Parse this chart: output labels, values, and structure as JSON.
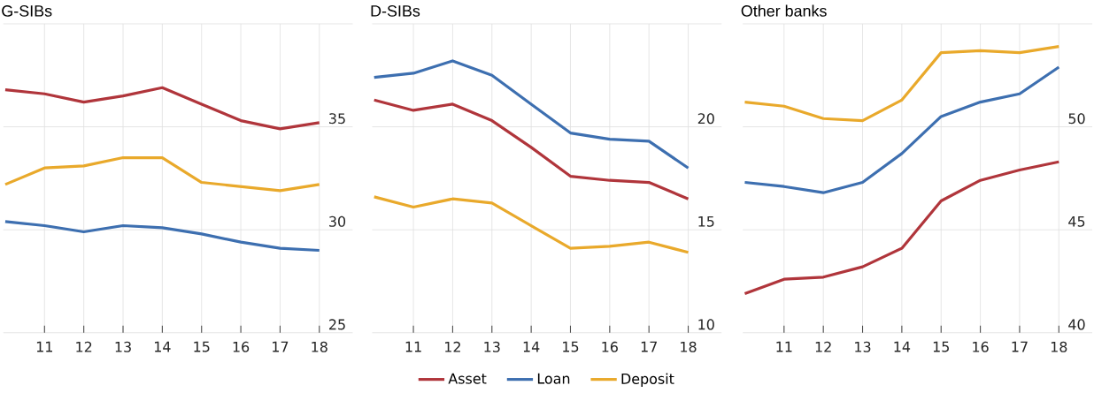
{
  "chart_data": [
    {
      "type": "line",
      "title": "G-SIBs",
      "x": [
        10,
        11,
        12,
        13,
        14,
        15,
        16,
        17,
        18
      ],
      "xlim": [
        9.95,
        18.85
      ],
      "xticks": [
        11,
        12,
        13,
        14,
        15,
        16,
        17,
        18
      ],
      "ylim": [
        25,
        40
      ],
      "yticks": [
        25,
        30,
        35,
        {
          "value": 40,
          "label": null
        }
      ],
      "grid": true,
      "legend": false,
      "series": [
        {
          "color": "#b0353b",
          "values": [
            36.8,
            36.6,
            36.2,
            36.5,
            36.9,
            36.1,
            35.3,
            34.9,
            35.2
          ]
        },
        {
          "color": "#3d6fb0",
          "values": [
            30.4,
            30.2,
            29.9,
            30.2,
            30.1,
            29.8,
            29.4,
            29.1,
            29.0
          ]
        },
        {
          "color": "#e9a92b",
          "values": [
            32.2,
            33.0,
            33.1,
            33.5,
            33.5,
            32.3,
            32.1,
            31.9,
            32.2
          ]
        }
      ]
    },
    {
      "type": "line",
      "title": "D-SIBs",
      "x": [
        10,
        11,
        12,
        13,
        14,
        15,
        16,
        17,
        18
      ],
      "xlim": [
        9.95,
        18.85
      ],
      "xticks": [
        11,
        12,
        13,
        14,
        15,
        16,
        17,
        18
      ],
      "ylim": [
        10,
        25
      ],
      "yticks": [
        10,
        15,
        20,
        {
          "value": 25,
          "label": null
        }
      ],
      "grid": true,
      "legend": "bottom",
      "series": [
        {
          "name": "Asset",
          "color": "#b0353b",
          "values": [
            21.3,
            20.8,
            21.1,
            20.3,
            19.0,
            17.6,
            17.4,
            17.3,
            16.5
          ]
        },
        {
          "name": "Loan",
          "color": "#3d6fb0",
          "values": [
            22.4,
            22.6,
            23.2,
            22.5,
            21.1,
            19.7,
            19.4,
            19.3,
            18.0
          ]
        },
        {
          "name": "Deposit",
          "color": "#e9a92b",
          "values": [
            16.6,
            16.1,
            16.5,
            16.3,
            15.2,
            14.1,
            14.2,
            14.4,
            13.9
          ]
        }
      ]
    },
    {
      "type": "line",
      "title": "Other banks",
      "x": [
        10,
        11,
        12,
        13,
        14,
        15,
        16,
        17,
        18
      ],
      "xlim": [
        9.95,
        18.85
      ],
      "xticks": [
        11,
        12,
        13,
        14,
        15,
        16,
        17,
        18
      ],
      "ylim": [
        40,
        55
      ],
      "yticks": [
        40,
        45,
        50,
        {
          "value": 55,
          "label": null
        }
      ],
      "grid": true,
      "legend": false,
      "series": [
        {
          "color": "#b0353b",
          "values": [
            41.9,
            42.6,
            42.7,
            43.2,
            44.1,
            46.4,
            47.4,
            47.9,
            48.3
          ]
        },
        {
          "color": "#3d6fb0",
          "values": [
            47.3,
            47.1,
            46.8,
            47.3,
            48.7,
            50.5,
            51.2,
            51.6,
            52.9
          ]
        },
        {
          "color": "#e9a92b",
          "values": [
            51.2,
            51.0,
            50.4,
            50.3,
            51.3,
            53.6,
            53.7,
            53.6,
            53.9
          ]
        }
      ]
    }
  ]
}
